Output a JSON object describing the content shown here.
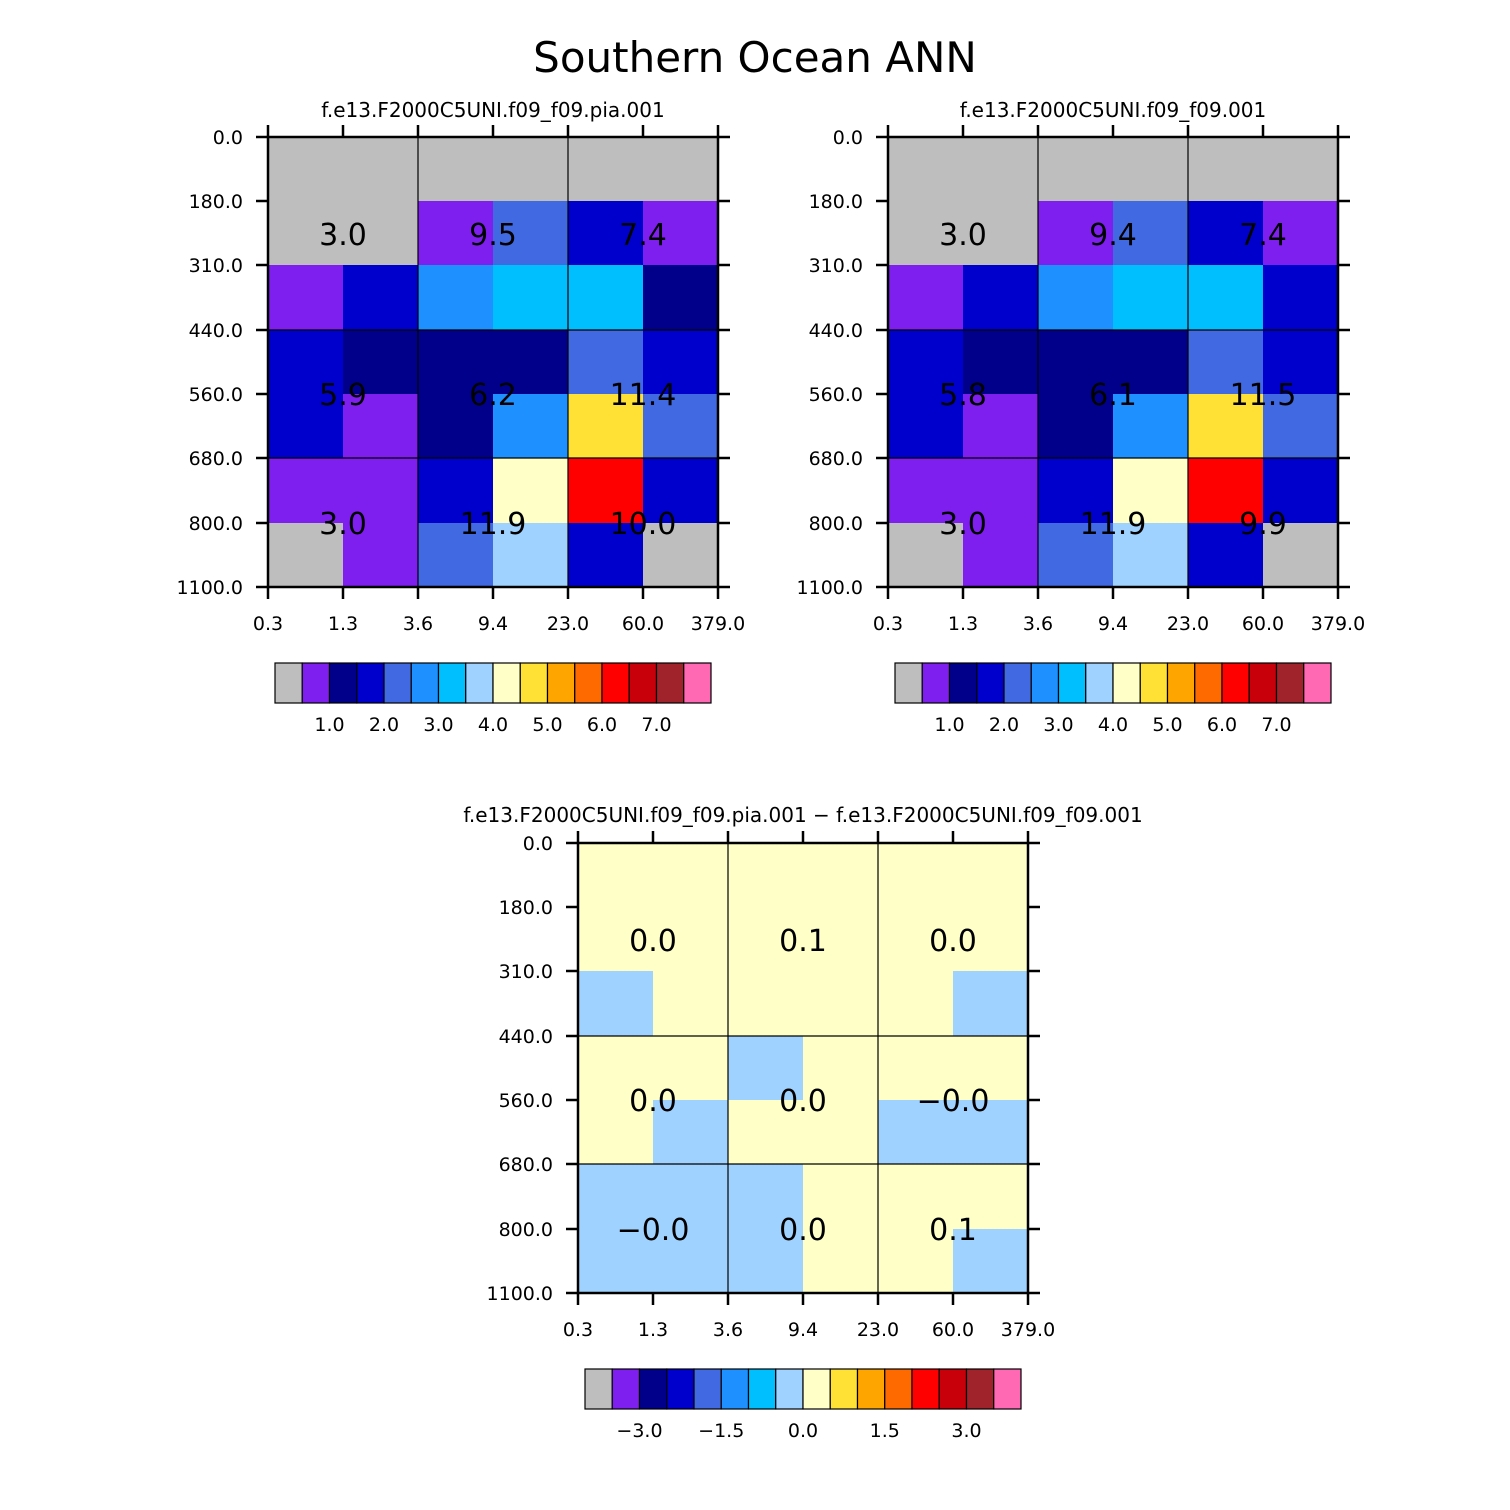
{
  "figure_title": "Southern Ocean ANN",
  "chart_data": [
    {
      "type": "heatmap",
      "title": "f.e13.F2000C5UNI.f09_f09.pia.001",
      "x_ticks": [
        "0.3",
        "1.3",
        "3.6",
        "9.4",
        "23.0",
        "60.0",
        "379.0"
      ],
      "y_ticks": [
        "0.0",
        "180.0",
        "310.0",
        "440.0",
        "560.0",
        "680.0",
        "800.0",
        "1100.0"
      ],
      "fine_cells": [
        [
          0,
          0,
          0,
          0,
          0,
          0
        ],
        [
          0,
          0,
          1,
          4,
          3,
          1
        ],
        [
          1,
          3,
          5,
          6,
          6,
          2
        ],
        [
          3,
          2,
          2,
          2,
          4,
          3
        ],
        [
          3,
          1,
          2,
          5,
          9,
          4
        ],
        [
          1,
          1,
          3,
          8,
          12,
          3
        ],
        [
          0,
          1,
          4,
          7,
          3,
          0
        ]
      ],
      "block_values": [
        [
          "3.0",
          "9.5",
          "7.4"
        ],
        [
          "5.9",
          "6.2",
          "11.4"
        ],
        [
          "3.0",
          "11.9",
          "10.0"
        ]
      ],
      "colorbar": {
        "colors": [
          "#bebebe",
          "#7f1fef",
          "#00008b",
          "#0000cd",
          "#4169e1",
          "#1e90ff",
          "#00bfff",
          "#a0d2ff",
          "#ffffc8",
          "#ffe135",
          "#ffa500",
          "#ff6a00",
          "#ff0000",
          "#c8000a",
          "#a0222a",
          "#ff69b4"
        ],
        "labels": [
          "1.0",
          "2.0",
          "3.0",
          "4.0",
          "5.0",
          "6.0",
          "7.0"
        ]
      }
    },
    {
      "type": "heatmap",
      "title": "f.e13.F2000C5UNI.f09_f09.001",
      "x_ticks": [
        "0.3",
        "1.3",
        "3.6",
        "9.4",
        "23.0",
        "60.0",
        "379.0"
      ],
      "y_ticks": [
        "0.0",
        "180.0",
        "310.0",
        "440.0",
        "560.0",
        "680.0",
        "800.0",
        "1100.0"
      ],
      "fine_cells": [
        [
          0,
          0,
          0,
          0,
          0,
          0
        ],
        [
          0,
          0,
          1,
          4,
          3,
          1
        ],
        [
          1,
          3,
          5,
          6,
          6,
          3
        ],
        [
          3,
          2,
          2,
          2,
          4,
          3
        ],
        [
          3,
          1,
          2,
          5,
          9,
          4
        ],
        [
          1,
          1,
          3,
          8,
          12,
          3
        ],
        [
          0,
          1,
          4,
          7,
          3,
          0
        ]
      ],
      "block_values": [
        [
          "3.0",
          "9.4",
          "7.4"
        ],
        [
          "5.8",
          "6.1",
          "11.5"
        ],
        [
          "3.0",
          "11.9",
          "9.9"
        ]
      ],
      "colorbar": {
        "colors": [
          "#bebebe",
          "#7f1fef",
          "#00008b",
          "#0000cd",
          "#4169e1",
          "#1e90ff",
          "#00bfff",
          "#a0d2ff",
          "#ffffc8",
          "#ffe135",
          "#ffa500",
          "#ff6a00",
          "#ff0000",
          "#c8000a",
          "#a0222a",
          "#ff69b4"
        ],
        "labels": [
          "1.0",
          "2.0",
          "3.0",
          "4.0",
          "5.0",
          "6.0",
          "7.0"
        ]
      }
    },
    {
      "type": "heatmap",
      "title": "f.e13.F2000C5UNI.f09_f09.pia.001 − f.e13.F2000C5UNI.f09_f09.001",
      "x_ticks": [
        "0.3",
        "1.3",
        "3.6",
        "9.4",
        "23.0",
        "60.0",
        "379.0"
      ],
      "y_ticks": [
        "0.0",
        "180.0",
        "310.0",
        "440.0",
        "560.0",
        "680.0",
        "800.0",
        "1100.0"
      ],
      "fine_cells": [
        [
          8,
          8,
          8,
          8,
          8,
          8
        ],
        [
          8,
          8,
          8,
          8,
          8,
          8
        ],
        [
          7,
          8,
          8,
          8,
          8,
          7
        ],
        [
          8,
          8,
          7,
          8,
          8,
          8
        ],
        [
          8,
          7,
          8,
          8,
          7,
          7
        ],
        [
          7,
          7,
          7,
          8,
          8,
          8
        ],
        [
          7,
          7,
          7,
          8,
          8,
          7
        ]
      ],
      "block_values": [
        [
          "0.0",
          "0.1",
          "0.0"
        ],
        [
          "0.0",
          "0.0",
          "−0.0"
        ],
        [
          "−0.0",
          "0.0",
          "0.1"
        ]
      ],
      "colorbar": {
        "colors": [
          "#bebebe",
          "#7f1fef",
          "#00008b",
          "#0000cd",
          "#4169e1",
          "#1e90ff",
          "#00bfff",
          "#a0d2ff",
          "#ffffc8",
          "#ffe135",
          "#ffa500",
          "#ff6a00",
          "#ff0000",
          "#c8000a",
          "#a0222a",
          "#ff69b4"
        ],
        "labels": [
          "−3.0",
          "−1.5",
          "0.0",
          "1.5",
          "3.0"
        ]
      }
    }
  ]
}
